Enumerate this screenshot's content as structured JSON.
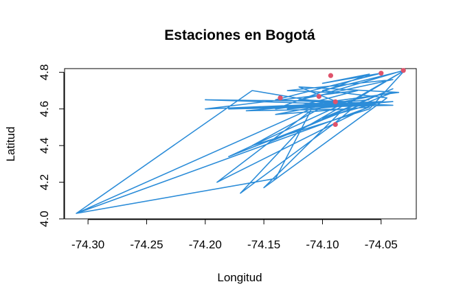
{
  "chart_data": {
    "type": "line",
    "title": "Estaciones en Bogotá",
    "xlabel": "Longitud",
    "ylabel": "Latitud",
    "xlim": [
      -74.32,
      -74.02
    ],
    "ylim": [
      4.0,
      4.82
    ],
    "x_ticks": [
      "-74.30",
      "-74.25",
      "-74.20",
      "-74.15",
      "-74.10",
      "-74.05"
    ],
    "x_tick_values": [
      -74.3,
      -74.25,
      -74.2,
      -74.15,
      -74.1,
      -74.05
    ],
    "y_ticks": [
      "4.0",
      "4.2",
      "4.4",
      "4.6",
      "4.8"
    ],
    "y_tick_values": [
      4.0,
      4.2,
      4.4,
      4.6,
      4.8
    ],
    "grid": false,
    "legend": "none",
    "series": [
      {
        "kind": "path",
        "color": "#2b8cd8",
        "points": [
          [
            -74.031,
            4.81
          ],
          [
            -74.095,
            4.69
          ],
          [
            -74.13,
            4.7
          ],
          [
            -74.04,
            4.76
          ],
          [
            -74.12,
            4.65
          ],
          [
            -74.08,
            4.64
          ],
          [
            -74.2,
            4.65
          ],
          [
            -74.06,
            4.62
          ],
          [
            -74.15,
            4.61
          ],
          [
            -74.04,
            4.64
          ],
          [
            -74.11,
            4.6
          ],
          [
            -74.31,
            4.03
          ],
          [
            -74.06,
            4.61
          ],
          [
            -74.14,
            4.57
          ],
          [
            -74.04,
            4.69
          ],
          [
            -74.18,
            4.34
          ],
          [
            -74.085,
            4.62
          ],
          [
            -74.16,
            4.7
          ],
          [
            -74.31,
            4.03
          ],
          [
            -74.14,
            4.22
          ],
          [
            -74.11,
            4.59
          ],
          [
            -74.19,
            4.2
          ],
          [
            -74.09,
            4.52
          ],
          [
            -74.17,
            4.14
          ],
          [
            -74.12,
            4.48
          ],
          [
            -74.03,
            4.81
          ],
          [
            -74.06,
            4.6
          ],
          [
            -74.16,
            4.4
          ],
          [
            -74.1,
            4.61
          ],
          [
            -74.05,
            4.64
          ],
          [
            -74.13,
            4.6
          ],
          [
            -74.07,
            4.7
          ],
          [
            -74.2,
            4.6
          ],
          [
            -74.05,
            4.64
          ],
          [
            -74.1,
            4.55
          ],
          [
            -74.04,
            4.71
          ],
          [
            -74.145,
            4.42
          ],
          [
            -74.085,
            4.58
          ],
          [
            -74.15,
            4.17
          ],
          [
            -74.045,
            4.66
          ],
          [
            -74.1,
            4.7
          ],
          [
            -74.03,
            4.81
          ],
          [
            -74.08,
            4.62
          ],
          [
            -74.12,
            4.72
          ],
          [
            -74.035,
            4.69
          ],
          [
            -74.14,
            4.6
          ],
          [
            -74.06,
            4.79
          ],
          [
            -74.1,
            4.74
          ],
          [
            -74.05,
            4.795
          ],
          [
            -74.14,
            4.65
          ],
          [
            -74.04,
            4.62
          ],
          [
            -74.18,
            4.6
          ],
          [
            -74.055,
            4.63
          ],
          [
            -74.09,
            4.52
          ],
          [
            -74.075,
            4.6
          ],
          [
            -74.165,
            4.59
          ],
          [
            -74.06,
            4.65
          ]
        ]
      },
      {
        "kind": "points",
        "color": "#df536b",
        "points": [
          [
            -74.136,
            4.66
          ],
          [
            -74.103,
            4.668
          ],
          [
            -74.093,
            4.782
          ],
          [
            -74.089,
            4.639
          ],
          [
            -74.089,
            4.515
          ],
          [
            -74.05,
            4.795
          ],
          [
            -74.031,
            4.81
          ]
        ]
      }
    ]
  }
}
